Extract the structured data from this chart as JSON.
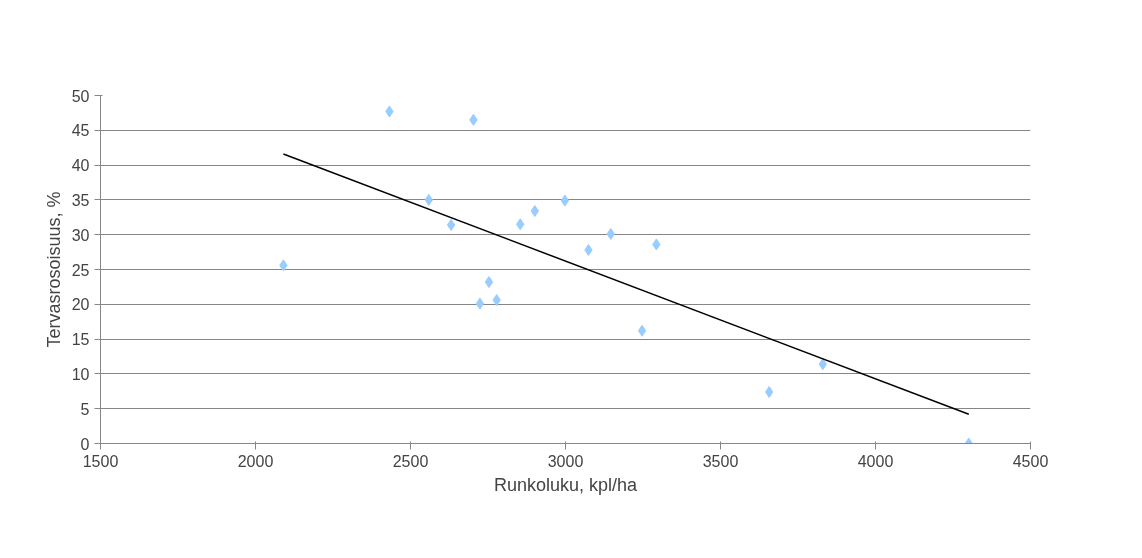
{
  "chart_data": {
    "type": "scatter",
    "xlabel": "Runkoluku, kpl/ha",
    "ylabel": "Tervasrosoisuus, %",
    "xlim": [
      1500,
      4500
    ],
    "xticks": [
      1500,
      2000,
      2500,
      3000,
      3500,
      4000,
      4500
    ],
    "ylim": [
      0,
      50
    ],
    "yticks": [
      0,
      5,
      10,
      15,
      20,
      25,
      30,
      35,
      40,
      45,
      50
    ],
    "grid": "y",
    "series": [
      {
        "marker": "diamond",
        "color": "#99ccff",
        "x": [
          2090,
          2432,
          2703,
          2559,
          2631,
          2854,
          2901,
          2998,
          3146,
          3074,
          3293,
          2753,
          2724,
          2778,
          3247,
          3657,
          3830,
          4301
        ],
        "values": [
          25.6,
          47.7,
          46.5,
          35.0,
          31.4,
          31.5,
          33.4,
          34.9,
          30.1,
          27.8,
          28.6,
          23.2,
          20.1,
          20.6,
          16.2,
          7.4,
          11.4,
          0
        ]
      },
      {
        "type": "line",
        "color": "#000000",
        "x": [
          2090,
          4301
        ],
        "values": [
          41.6,
          4.2
        ]
      }
    ]
  }
}
